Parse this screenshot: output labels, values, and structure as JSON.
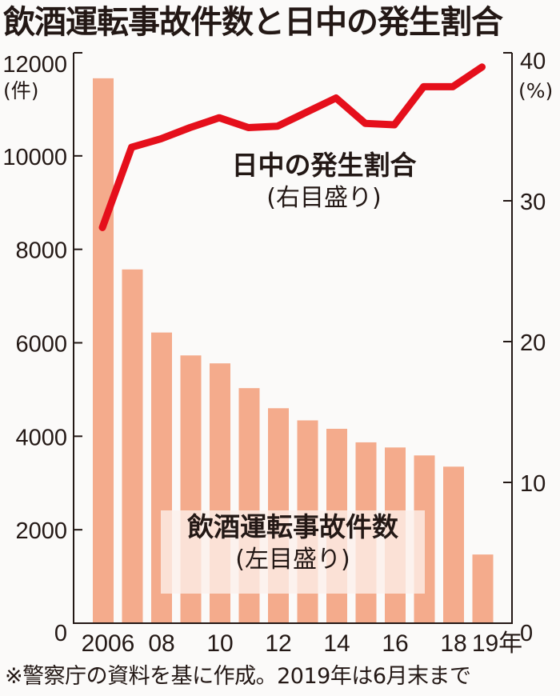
{
  "title": "飲酒運転事故件数と日中の発生割合",
  "note": "※警察庁の資料を基に作成。2019年は6月末まで",
  "left_axis": {
    "unit": "(件)",
    "ticks": [
      "12000",
      "10000",
      "8000",
      "6000",
      "4000",
      "2000",
      "0"
    ]
  },
  "right_axis": {
    "unit": "(%)",
    "ticks": [
      "40",
      "30",
      "20",
      "10",
      "0"
    ]
  },
  "x_axis": {
    "ticks": [
      "2006",
      "08",
      "10",
      "12",
      "14",
      "16",
      "18",
      "19年"
    ]
  },
  "labels": {
    "bar_main": "飲酒運転事故件数",
    "bar_sub": "(左目盛り)",
    "line_main": "日中の発生割合",
    "line_sub": "(右目盛り)"
  },
  "colors": {
    "bar": "#f4ab8c",
    "line": "#e50f1b",
    "axis": "#231815"
  },
  "chart_data": {
    "type": "bar+line",
    "title": "飲酒運転事故件数と日中の発生割合",
    "categories": [
      "2006",
      "2007",
      "2008",
      "2009",
      "2010",
      "2011",
      "2012",
      "2013",
      "2014",
      "2015",
      "2016",
      "2017",
      "2018",
      "2019"
    ],
    "series": [
      {
        "name": "飲酒運転事故件数",
        "type": "bar",
        "axis": "left",
        "unit": "件",
        "values": [
          11660,
          7570,
          6220,
          5730,
          5560,
          5030,
          4600,
          4340,
          4160,
          3870,
          3760,
          3590,
          3350,
          1470
        ]
      },
      {
        "name": "日中の発生割合",
        "type": "line",
        "axis": "right",
        "unit": "%",
        "values": [
          28.1,
          33.8,
          34.4,
          35.2,
          35.9,
          35.2,
          35.3,
          36.3,
          37.3,
          35.5,
          35.4,
          38.1,
          38.1,
          39.5
        ]
      }
    ],
    "xlabel": "年",
    "ylabel_left": "件",
    "ylim_left": [
      0,
      12000
    ],
    "ylabel_right": "%",
    "ylim_right": [
      0,
      40
    ],
    "grid": false,
    "annotations": [
      "飲酒運転事故件数(左目盛り)",
      "日中の発生割合(右目盛り)",
      "※警察庁の資料を基に作成。2019年は6月末まで"
    ]
  }
}
